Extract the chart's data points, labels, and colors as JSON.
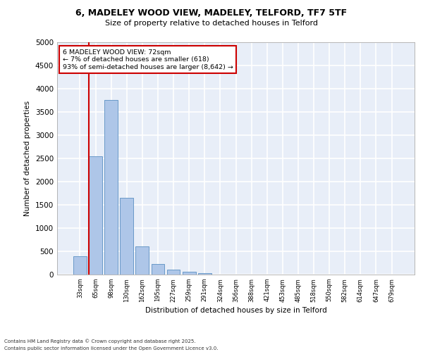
{
  "title_line1": "6, MADELEY WOOD VIEW, MADELEY, TELFORD, TF7 5TF",
  "title_line2": "Size of property relative to detached houses in Telford",
  "xlabel": "Distribution of detached houses by size in Telford",
  "ylabel": "Number of detached properties",
  "categories": [
    "33sqm",
    "65sqm",
    "98sqm",
    "130sqm",
    "162sqm",
    "195sqm",
    "227sqm",
    "259sqm",
    "291sqm",
    "324sqm",
    "356sqm",
    "388sqm",
    "421sqm",
    "453sqm",
    "485sqm",
    "518sqm",
    "550sqm",
    "582sqm",
    "614sqm",
    "647sqm",
    "679sqm"
  ],
  "values": [
    390,
    2540,
    3760,
    1650,
    610,
    230,
    105,
    55,
    30,
    0,
    0,
    0,
    0,
    0,
    0,
    0,
    0,
    0,
    0,
    0,
    0
  ],
  "bar_color": "#aec6e8",
  "bar_edgecolor": "#5a8fc2",
  "marker_line_color": "#cc0000",
  "ylim": [
    0,
    5000
  ],
  "yticks": [
    0,
    500,
    1000,
    1500,
    2000,
    2500,
    3000,
    3500,
    4000,
    4500,
    5000
  ],
  "annotation_text": "6 MADELEY WOOD VIEW: 72sqm\n← 7% of detached houses are smaller (618)\n93% of semi-detached houses are larger (8,642) →",
  "annotation_box_color": "#cc0000",
  "background_color": "#e8eef8",
  "grid_color": "#ffffff",
  "footer_line1": "Contains HM Land Registry data © Crown copyright and database right 2025.",
  "footer_line2": "Contains public sector information licensed under the Open Government Licence v3.0."
}
